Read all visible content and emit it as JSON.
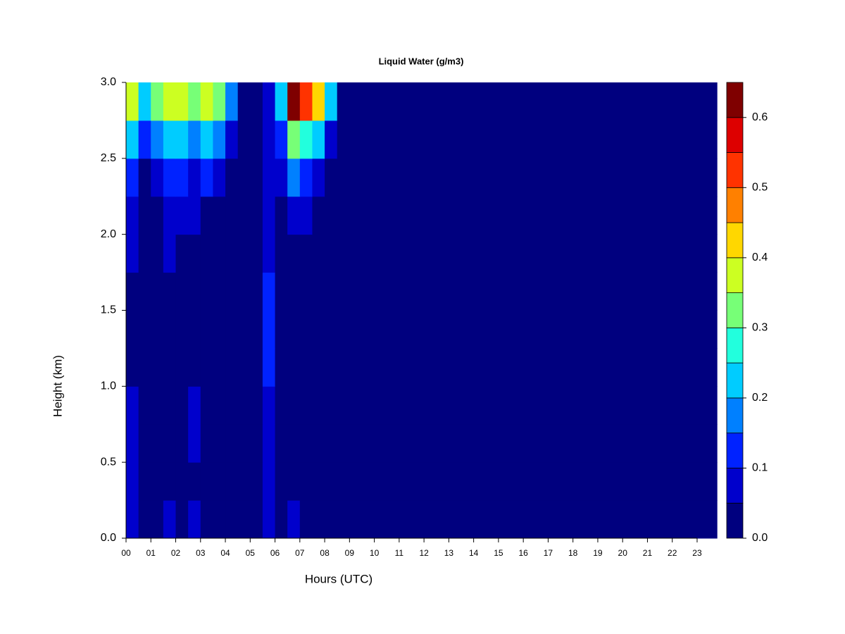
{
  "chart_data": {
    "type": "contour",
    "title": "Liquid Water (g/m3)",
    "x_label": "Hours (UTC)",
    "y_label": "Height (km)",
    "x_bins": [
      0,
      0.5,
      1,
      1.5,
      2,
      2.5,
      3,
      3.5,
      4,
      4.5,
      5,
      5.5,
      6,
      6.5,
      7,
      7.5,
      8,
      8.5,
      23.8
    ],
    "y_bins": [
      0,
      0.25,
      0.5,
      0.75,
      1,
      1.25,
      1.5,
      1.75,
      2,
      2.25,
      2.5,
      2.75,
      3
    ],
    "z": [
      [
        0.07,
        0,
        0,
        0.07,
        0,
        0.06,
        0.04,
        0,
        0,
        0,
        0,
        0.06,
        0,
        0.05,
        0,
        0,
        0,
        0
      ],
      [
        0.06,
        0,
        0,
        0.03,
        0,
        0.04,
        0,
        0,
        0,
        0,
        0,
        0.07,
        0.03,
        0,
        0,
        0,
        0,
        0
      ],
      [
        0.06,
        0,
        0,
        0,
        0,
        0.06,
        0,
        0,
        0,
        0,
        0,
        0.08,
        0.03,
        0,
        0,
        0,
        0,
        0
      ],
      [
        0.05,
        0,
        0,
        0,
        0,
        0.05,
        0,
        0,
        0,
        0,
        0,
        0.09,
        0.03,
        0,
        0,
        0,
        0,
        0
      ],
      [
        0.04,
        0,
        0,
        0,
        0,
        0.04,
        0,
        0,
        0,
        0,
        0,
        0.1,
        0.03,
        0,
        0,
        0,
        0,
        0
      ],
      [
        0.03,
        0,
        0,
        0,
        0,
        0.03,
        0,
        0,
        0,
        0,
        0,
        0.11,
        0.03,
        0,
        0,
        0,
        0,
        0
      ],
      [
        0.04,
        0,
        0,
        0,
        0,
        0.03,
        0,
        0,
        0,
        0,
        0,
        0.1,
        0.03,
        0,
        0,
        0,
        0,
        0
      ],
      [
        0.05,
        0,
        0,
        0.05,
        0.03,
        0.04,
        0,
        0,
        0,
        0,
        0,
        0.06,
        0.03,
        0.04,
        0,
        0,
        0,
        0
      ],
      [
        0.06,
        0,
        0.04,
        0.07,
        0.06,
        0.06,
        0.04,
        0,
        0,
        0,
        0,
        0.05,
        0.03,
        0.07,
        0.05,
        0,
        0,
        0
      ],
      [
        0.1,
        0.03,
        0.08,
        0.1,
        0.1,
        0.09,
        0.1,
        0.06,
        0,
        0,
        0,
        0.05,
        0.06,
        0.15,
        0.12,
        0.08,
        0,
        0
      ],
      [
        0.2,
        0.1,
        0.17,
        0.2,
        0.2,
        0.18,
        0.2,
        0.15,
        0.05,
        0,
        0,
        0.05,
        0.12,
        0.3,
        0.28,
        0.22,
        0.07,
        0
      ],
      [
        0.38,
        0.22,
        0.3,
        0.35,
        0.35,
        0.33,
        0.35,
        0.3,
        0.15,
        0,
        0,
        0.05,
        0.2,
        0.62,
        0.52,
        0.42,
        0.2,
        0
      ]
    ],
    "levels": [
      0,
      0.05,
      0.1,
      0.15,
      0.2,
      0.25,
      0.3,
      0.35,
      0.4,
      0.45,
      0.5,
      0.55,
      0.6,
      0.65
    ],
    "colors": [
      "#00007f",
      "#0000cc",
      "#0022ff",
      "#0080ff",
      "#00ccff",
      "#22ffdd",
      "#77ff77",
      "#ccff22",
      "#ffd700",
      "#ff8000",
      "#ff3300",
      "#dd0000",
      "#7f0000"
    ],
    "xlim": [
      0,
      23.8
    ],
    "ylim": [
      0,
      3
    ],
    "xticks": [
      {
        "value": 0,
        "label": "00"
      },
      {
        "value": 1,
        "label": "01"
      },
      {
        "value": 2,
        "label": "02"
      },
      {
        "value": 3,
        "label": "03"
      },
      {
        "value": 4,
        "label": "04"
      },
      {
        "value": 5,
        "label": "05"
      },
      {
        "value": 6,
        "label": "06"
      },
      {
        "value": 7,
        "label": "07"
      },
      {
        "value": 8,
        "label": "08"
      },
      {
        "value": 9,
        "label": "09"
      },
      10,
      11,
      12,
      13,
      14,
      15,
      16,
      17,
      18,
      19,
      20,
      21,
      22,
      23
    ],
    "yticks": [
      {
        "value": 0,
        "label": "0.0"
      },
      {
        "value": 0.5,
        "label": "0.5"
      },
      {
        "value": 1,
        "label": "1.0"
      },
      {
        "value": 1.5,
        "label": "1.5"
      },
      {
        "value": 2,
        "label": "2.0"
      },
      {
        "value": 2.5,
        "label": "2.5"
      },
      {
        "value": 3,
        "label": "3.0"
      }
    ],
    "cbar_ticks": [
      {
        "value": 0,
        "label": "0.0"
      },
      {
        "value": 0.1,
        "label": "0.1"
      },
      {
        "value": 0.2,
        "label": "0.2"
      },
      {
        "value": 0.3,
        "label": "0.3"
      },
      {
        "value": 0.4,
        "label": "0.4"
      },
      {
        "value": 0.5,
        "label": "0.5"
      },
      {
        "value": 0.6,
        "label": "0.6"
      }
    ]
  }
}
